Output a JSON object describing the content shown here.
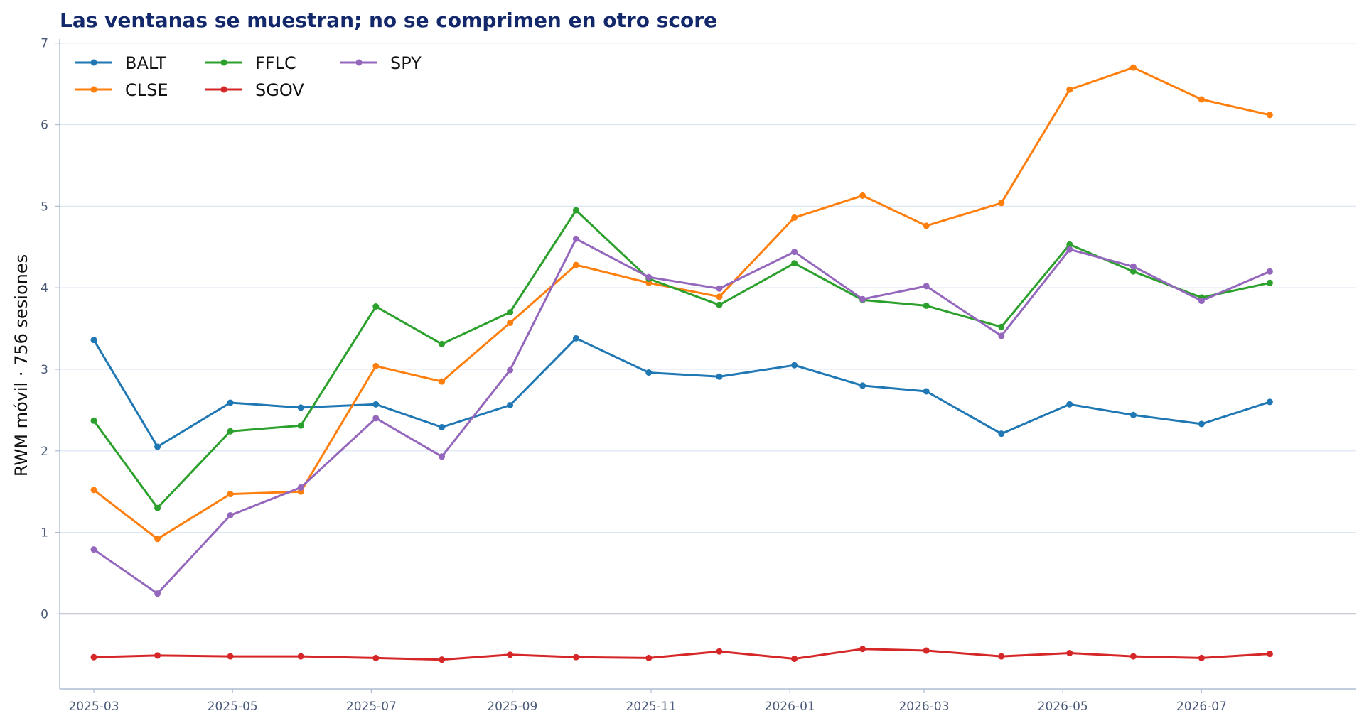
{
  "chart_data": {
    "type": "line",
    "title": "Las ventanas se muestran; no se comprimen en otro score",
    "xlabel": "",
    "ylabel": "RWM móvil · 756 sesiones",
    "x": [
      "2025-03-01",
      "2025-03-29",
      "2025-04-30",
      "2025-05-31",
      "2025-07-03",
      "2025-08-01",
      "2025-08-31",
      "2025-09-29",
      "2025-10-31",
      "2025-12-01",
      "2026-01-03",
      "2026-02-02",
      "2026-03-02",
      "2026-04-04",
      "2026-05-04",
      "2026-06-01",
      "2026-07-01",
      "2026-07-31"
    ],
    "xticks": [
      "2025-03",
      "2025-05",
      "2025-07",
      "2025-09",
      "2025-11",
      "2026-01",
      "2026-03",
      "2026-05",
      "2026-07"
    ],
    "xlim": [
      "2025-02-14",
      "2026-09-07"
    ],
    "ylim": [
      -0.92,
      7.05
    ],
    "yticks": [
      0,
      1,
      2,
      3,
      4,
      5,
      6,
      7
    ],
    "zero_line": true,
    "grid": "horizontal",
    "legend": "top-left",
    "series": [
      {
        "name": "BALT",
        "color": "#1f77b4",
        "values": [
          3.36,
          2.05,
          2.59,
          2.53,
          2.57,
          2.29,
          2.56,
          3.38,
          2.96,
          2.91,
          3.05,
          2.8,
          2.73,
          2.21,
          2.57,
          2.44,
          2.33,
          2.6
        ]
      },
      {
        "name": "CLSE",
        "color": "#ff7f0e",
        "values": [
          1.52,
          0.92,
          1.47,
          1.5,
          3.04,
          2.85,
          3.57,
          4.28,
          4.06,
          3.89,
          4.86,
          5.13,
          4.76,
          5.04,
          6.43,
          6.7,
          6.31,
          6.12
        ]
      },
      {
        "name": "FFLC",
        "color": "#2ca02c",
        "values": [
          2.37,
          1.3,
          2.24,
          2.31,
          3.77,
          3.31,
          3.7,
          4.95,
          4.11,
          3.79,
          4.3,
          3.85,
          3.78,
          3.52,
          4.53,
          4.2,
          3.88,
          4.06
        ]
      },
      {
        "name": "SGOV",
        "color": "#d62728",
        "values": [
          -0.53,
          -0.51,
          -0.52,
          -0.52,
          -0.54,
          -0.56,
          -0.5,
          -0.53,
          -0.54,
          -0.46,
          -0.55,
          -0.43,
          -0.45,
          -0.52,
          -0.48,
          -0.52,
          -0.54,
          -0.49
        ]
      },
      {
        "name": "SPY",
        "color": "#9467bd",
        "values": [
          0.79,
          0.25,
          1.21,
          1.55,
          2.4,
          1.93,
          2.99,
          4.6,
          4.13,
          3.99,
          4.44,
          3.86,
          4.02,
          3.41,
          4.47,
          4.26,
          3.84,
          4.2
        ]
      }
    ]
  }
}
